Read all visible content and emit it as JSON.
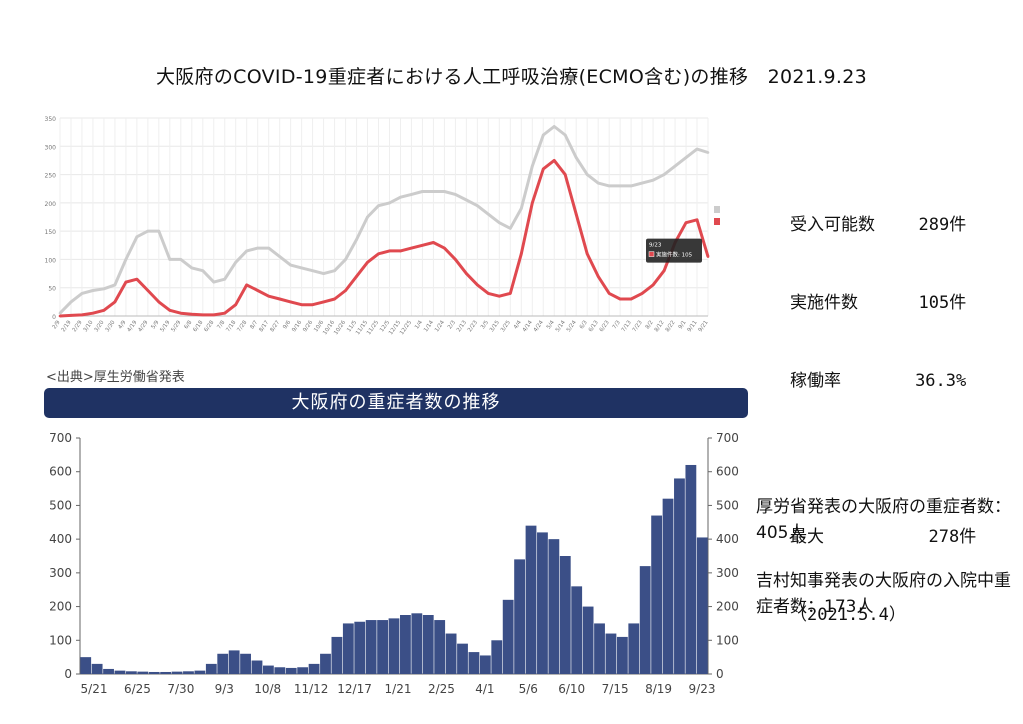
{
  "title": "大阪府のCOVID-19重症者における人工呼吸治療(ECMO含む)の推移　2021.9.23",
  "stats": {
    "capacity_label": "受入可能数",
    "capacity_value": "289件",
    "performed_label": "実施件数",
    "performed_value": "105件",
    "rate_label": "稼働率",
    "rate_value": "36.3%",
    "max_label": "最大",
    "max_value": "278件",
    "max_date": "（2021.5.4）"
  },
  "source": "<出典>厚生労働省発表",
  "banner_title": "大阪府の重症者数の推移",
  "notes": {
    "mhlw": "厚労省発表の大阪府の重症者数：405人",
    "governor": "吉村知事発表の大阪府の入院中重症者数：173人"
  },
  "colors": {
    "capacity_line": "#cccccc",
    "performed_line": "#e0494f",
    "bars": "#3b4f87",
    "banner": "#1f3263"
  },
  "chart_data": [
    {
      "type": "line",
      "legend": [
        "受入可能数",
        "実施件数"
      ],
      "legend_position": "right",
      "tooltip": {
        "date": "9/23",
        "text": "実施件数: 105"
      },
      "x": [
        "2/9",
        "2/19",
        "2/29",
        "3/10",
        "3/20",
        "3/30",
        "4/9",
        "4/19",
        "4/29",
        "5/9",
        "5/19",
        "5/29",
        "6/8",
        "6/18",
        "6/28",
        "7/8",
        "7/18",
        "7/28",
        "8/7",
        "8/17",
        "8/27",
        "9/6",
        "9/16",
        "9/26",
        "10/6",
        "10/16",
        "10/26",
        "11/5",
        "11/15",
        "11/25",
        "12/5",
        "12/15",
        "12/25",
        "1/4",
        "1/14",
        "1/24",
        "2/3",
        "2/13",
        "2/23",
        "3/5",
        "3/15",
        "3/25",
        "4/4",
        "4/14",
        "4/24",
        "5/4",
        "5/14",
        "5/24",
        "6/3",
        "6/13",
        "6/23",
        "7/3",
        "7/13",
        "7/23",
        "8/2",
        "8/12",
        "8/22",
        "9/1",
        "9/11",
        "9/21"
      ],
      "ylim": [
        0,
        350
      ],
      "yticks": [
        0,
        50,
        100,
        150,
        200,
        250,
        300,
        350
      ],
      "grid": true,
      "series": [
        {
          "name": "受入可能数",
          "values": [
            5,
            25,
            40,
            45,
            48,
            55,
            100,
            140,
            150,
            150,
            100,
            100,
            85,
            80,
            60,
            65,
            95,
            115,
            120,
            120,
            105,
            90,
            85,
            80,
            75,
            80,
            100,
            135,
            175,
            195,
            200,
            210,
            215,
            220,
            220,
            220,
            215,
            205,
            195,
            180,
            165,
            155,
            190,
            265,
            320,
            335,
            320,
            280,
            250,
            235,
            230,
            230,
            230,
            235,
            240,
            250,
            265,
            280,
            295,
            289
          ]
        },
        {
          "name": "実施件数",
          "values": [
            0,
            1,
            2,
            5,
            10,
            25,
            60,
            65,
            45,
            25,
            10,
            5,
            3,
            2,
            2,
            5,
            20,
            55,
            45,
            35,
            30,
            25,
            20,
            20,
            25,
            30,
            45,
            70,
            95,
            110,
            115,
            115,
            120,
            125,
            130,
            120,
            100,
            75,
            55,
            40,
            35,
            40,
            110,
            200,
            260,
            275,
            250,
            180,
            110,
            70,
            40,
            30,
            30,
            40,
            55,
            80,
            130,
            165,
            170,
            105
          ]
        }
      ]
    },
    {
      "type": "bar",
      "x_ticks": [
        "5/21",
        "6/25",
        "7/30",
        "9/3",
        "10/8",
        "11/12",
        "12/17",
        "1/21",
        "2/25",
        "4/1",
        "5/6",
        "6/10",
        "7/15",
        "8/19",
        "9/23"
      ],
      "ylim": [
        0,
        700
      ],
      "yticks": [
        0,
        100,
        200,
        300,
        400,
        500,
        600,
        700
      ],
      "values": [
        50,
        30,
        15,
        10,
        8,
        7,
        6,
        6,
        7,
        8,
        10,
        30,
        60,
        70,
        60,
        40,
        25,
        20,
        18,
        20,
        30,
        60,
        110,
        150,
        155,
        160,
        160,
        165,
        175,
        180,
        175,
        160,
        120,
        90,
        65,
        55,
        100,
        220,
        340,
        440,
        420,
        400,
        350,
        260,
        200,
        150,
        120,
        110,
        150,
        320,
        470,
        520,
        580,
        620,
        405
      ]
    }
  ]
}
